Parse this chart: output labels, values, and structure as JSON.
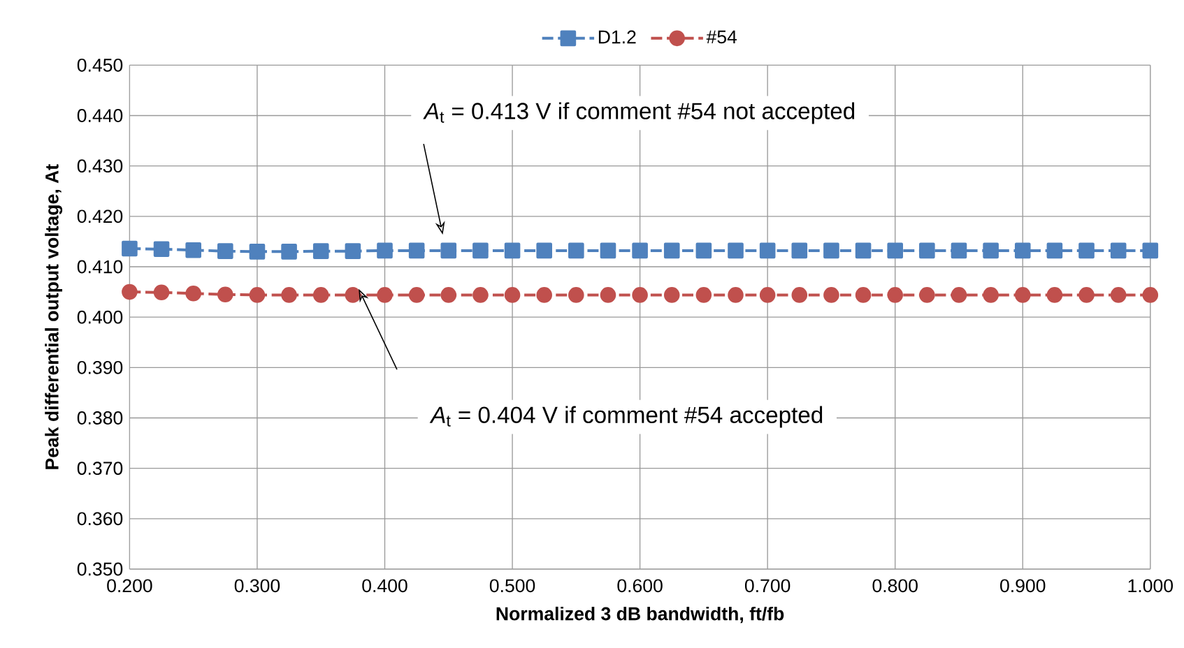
{
  "chart_data": {
    "type": "line",
    "xlabel": "Normalized 3 dB bandwidth, ft/fb",
    "ylabel": "Peak differential output voltage, At",
    "x": [
      0.2,
      0.225,
      0.25,
      0.275,
      0.3,
      0.325,
      0.35,
      0.375,
      0.4,
      0.425,
      0.45,
      0.475,
      0.5,
      0.525,
      0.55,
      0.575,
      0.6,
      0.625,
      0.65,
      0.675,
      0.7,
      0.725,
      0.75,
      0.775,
      0.8,
      0.825,
      0.85,
      0.875,
      0.9,
      0.925,
      0.95,
      0.975,
      1.0
    ],
    "series": [
      {
        "name": "D1.2",
        "color": "#4f81bd",
        "marker": "square",
        "values": [
          0.4136,
          0.4135,
          0.4133,
          0.4131,
          0.413,
          0.413,
          0.4131,
          0.4131,
          0.4132,
          0.4132,
          0.4132,
          0.4132,
          0.4132,
          0.4132,
          0.4132,
          0.4132,
          0.4132,
          0.4132,
          0.4132,
          0.4132,
          0.4132,
          0.4132,
          0.4132,
          0.4132,
          0.4132,
          0.4132,
          0.4132,
          0.4132,
          0.4132,
          0.4132,
          0.4132,
          0.4132,
          0.4132
        ]
      },
      {
        "name": "#54",
        "color": "#c0504d",
        "marker": "circle",
        "values": [
          0.405,
          0.4049,
          0.4047,
          0.4045,
          0.4044,
          0.4044,
          0.4044,
          0.4044,
          0.4044,
          0.4044,
          0.4044,
          0.4044,
          0.4044,
          0.4044,
          0.4044,
          0.4044,
          0.4044,
          0.4044,
          0.4044,
          0.4044,
          0.4044,
          0.4044,
          0.4044,
          0.4044,
          0.4044,
          0.4044,
          0.4044,
          0.4044,
          0.4044,
          0.4044,
          0.4044,
          0.4044,
          0.4044
        ]
      }
    ],
    "line_style": "dashed",
    "grid": true,
    "legend": "top",
    "xlim": [
      0.2,
      1.0
    ],
    "xticks": [
      {
        "value": 0.2,
        "label": "0.200"
      },
      {
        "value": 0.3,
        "label": "0.300"
      },
      {
        "value": 0.4,
        "label": "0.400"
      },
      {
        "value": 0.5,
        "label": "0.500"
      },
      {
        "value": 0.6,
        "label": "0.600"
      },
      {
        "value": 0.7,
        "label": "0.700"
      },
      {
        "value": 0.8,
        "label": "0.800"
      },
      {
        "value": 0.9,
        "label": "0.900"
      },
      {
        "value": 1.0,
        "label": "1.000"
      }
    ],
    "ylim": [
      0.35,
      0.45
    ],
    "yticks": [
      {
        "value": 0.35,
        "label": "0.350"
      },
      {
        "value": 0.36,
        "label": "0.360"
      },
      {
        "value": 0.37,
        "label": "0.370"
      },
      {
        "value": 0.38,
        "label": "0.380"
      },
      {
        "value": 0.39,
        "label": "0.390"
      },
      {
        "value": 0.4,
        "label": "0.400"
      },
      {
        "value": 0.41,
        "label": "0.410"
      },
      {
        "value": 0.42,
        "label": "0.420"
      },
      {
        "value": 0.43,
        "label": "0.430"
      },
      {
        "value": 0.44,
        "label": "0.440"
      },
      {
        "value": 0.45,
        "label": "0.450"
      }
    ],
    "annotations": [
      "*A*$_{t}$ = 0.413 V if comment #54 not accepted",
      "*A*$_{t}$ = 0.404 V if comment #54 accepted"
    ]
  }
}
